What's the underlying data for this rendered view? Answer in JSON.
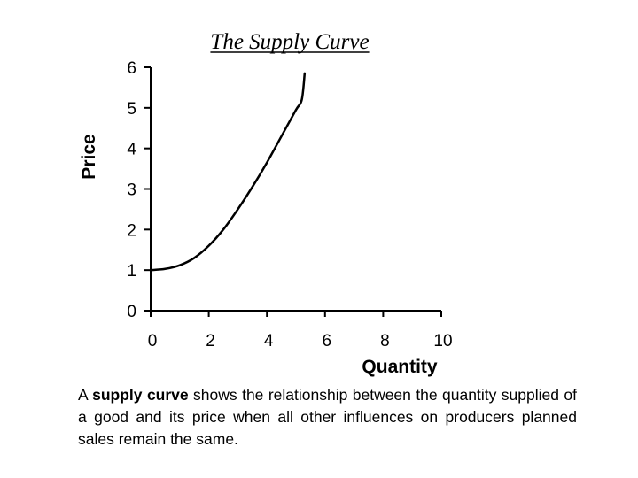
{
  "chart_data": {
    "type": "line",
    "title": "The Supply Curve",
    "xlabel": "Quantity",
    "ylabel": "Price",
    "xlim": [
      0,
      10
    ],
    "ylim": [
      0,
      6
    ],
    "x_ticks": [
      "0",
      "2",
      "4",
      "6",
      "8",
      "10"
    ],
    "y_ticks": [
      "0",
      "1",
      "2",
      "3",
      "4",
      "5",
      "6"
    ],
    "grid": false,
    "series": [
      {
        "points": [
          [
            0,
            1.0
          ],
          [
            0.5,
            1.03
          ],
          [
            1.0,
            1.12
          ],
          [
            1.5,
            1.3
          ],
          [
            2.0,
            1.6
          ],
          [
            2.5,
            2.0
          ],
          [
            3.0,
            2.5
          ],
          [
            3.5,
            3.05
          ],
          [
            4.0,
            3.65
          ],
          [
            4.5,
            4.3
          ],
          [
            5.0,
            4.95
          ],
          [
            5.2,
            5.2
          ],
          [
            5.3,
            5.85
          ]
        ]
      }
    ]
  },
  "caption": {
    "term": "supply curve",
    "before": "A ",
    "after": " shows the relationship between the quantity supplied of a good and its price when all other influences on producers planned sales remain the same."
  }
}
